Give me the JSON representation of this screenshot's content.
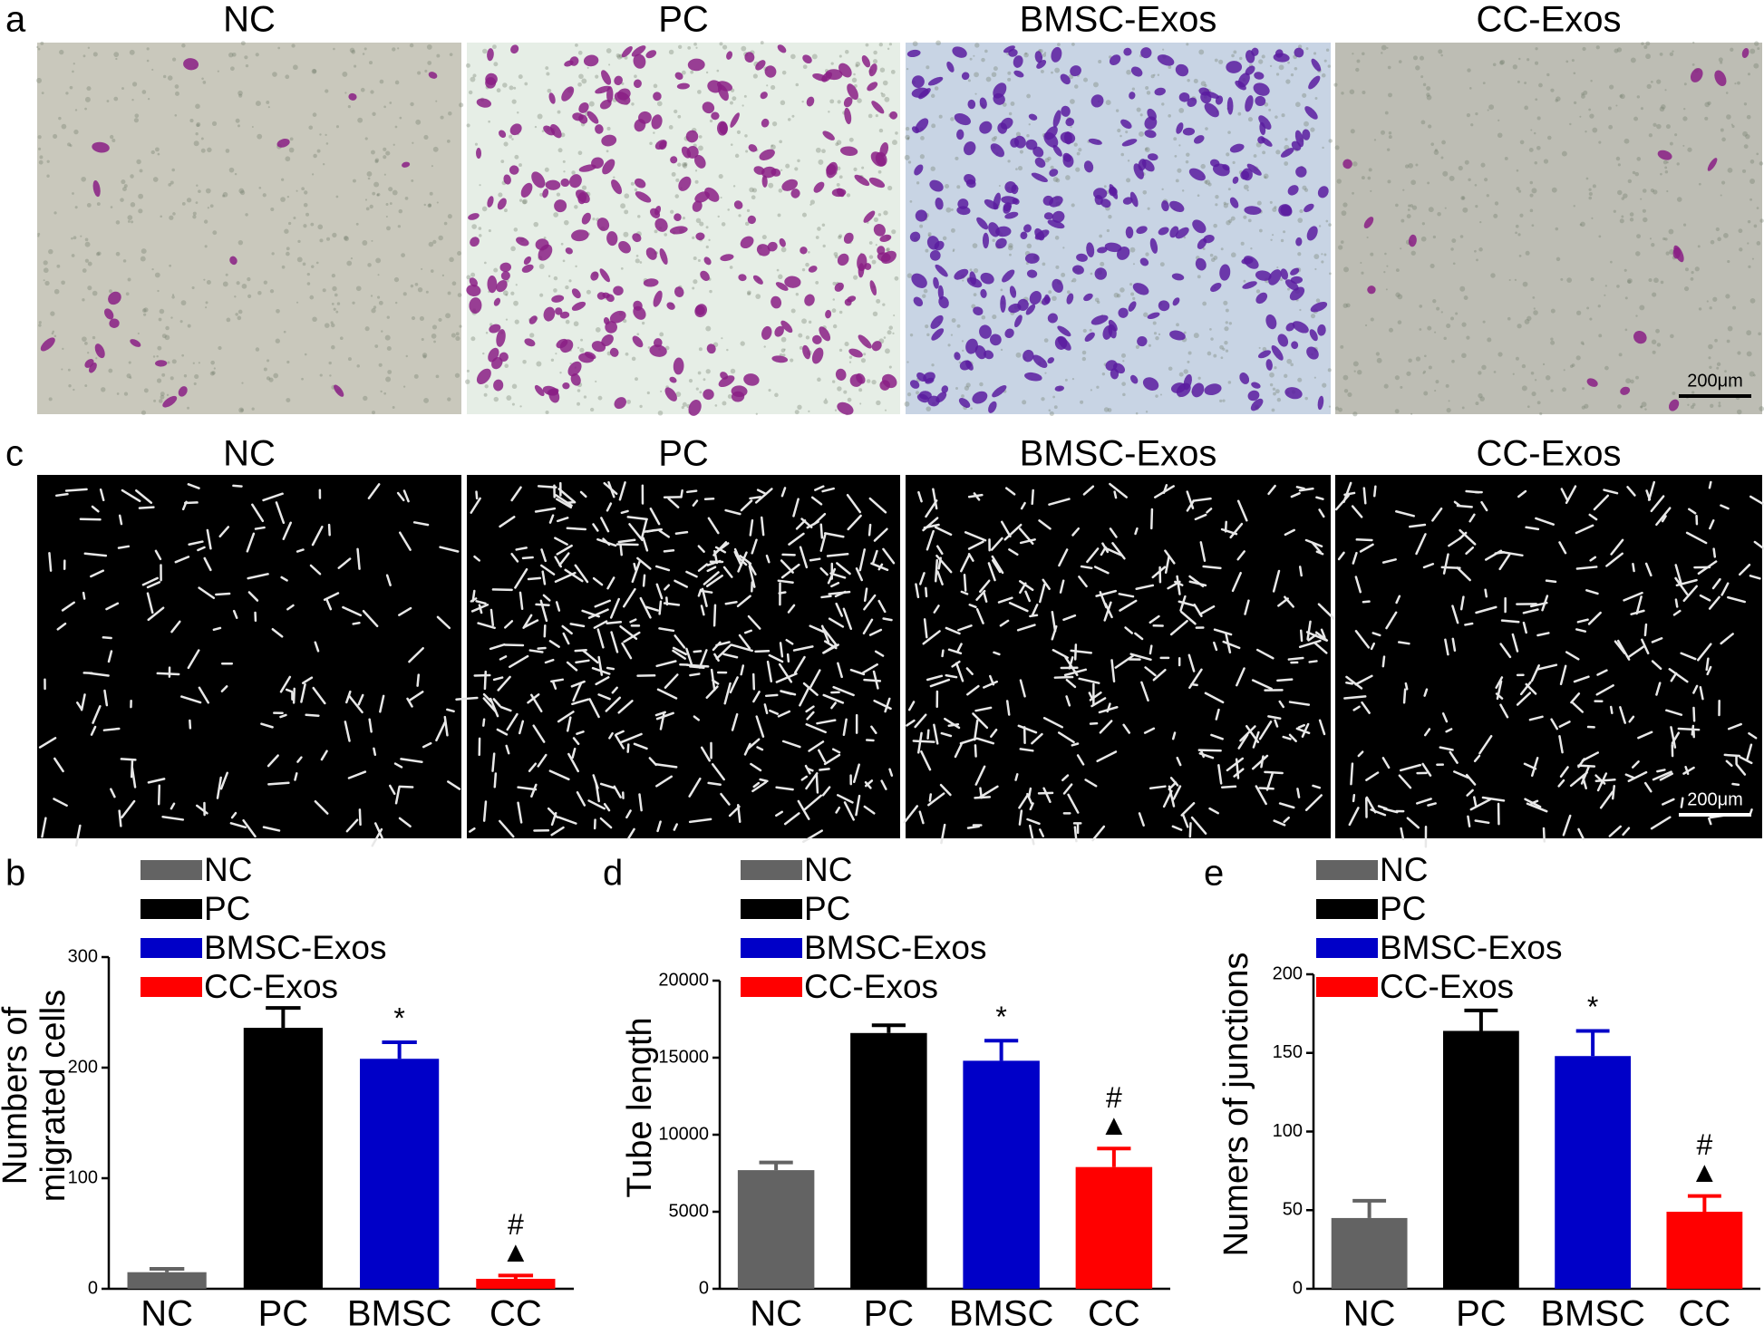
{
  "panels": {
    "a": {
      "label": "a",
      "titles": [
        "NC",
        "PC",
        "BMSC-Exos",
        "CC-Exos"
      ],
      "scale_bar": "200μm"
    },
    "c": {
      "label": "c",
      "titles": [
        "NC",
        "PC",
        "BMSC-Exos",
        "CC-Exos"
      ],
      "scale_bar": "200μm"
    }
  },
  "chart_data": [
    {
      "type": "bar",
      "panel_label": "b",
      "ylabel": [
        "Numbers of",
        "migrated cells"
      ],
      "categories": [
        "NC",
        "PC",
        "BMSC",
        "CC"
      ],
      "values": [
        15,
        236,
        208,
        9
      ],
      "errors": [
        3,
        18,
        15,
        3
      ],
      "colors": [
        "#636363",
        "#000000",
        "#0000c8",
        "#ff0000"
      ],
      "legend": [
        "NC",
        "PC",
        "BMSC-Exos",
        "CC-Exos"
      ],
      "annotations": [
        {
          "category": "BMSC",
          "text": "*"
        },
        {
          "category": "CC",
          "text": "▲"
        },
        {
          "category": "CC",
          "text": "#"
        }
      ],
      "ylim": [
        0,
        300
      ],
      "yticks": [
        0,
        100,
        200,
        300
      ]
    },
    {
      "type": "bar",
      "panel_label": "d",
      "ylabel": [
        "Tube length"
      ],
      "categories": [
        "NC",
        "PC",
        "BMSC",
        "CC"
      ],
      "values": [
        7700,
        16600,
        14800,
        7900
      ],
      "errors": [
        500,
        500,
        1300,
        1200
      ],
      "colors": [
        "#636363",
        "#000000",
        "#0000c8",
        "#ff0000"
      ],
      "legend": [
        "NC",
        "PC",
        "BMSC-Exos",
        "CC-Exos"
      ],
      "annotations": [
        {
          "category": "BMSC",
          "text": "*"
        },
        {
          "category": "CC",
          "text": "▲"
        },
        {
          "category": "CC",
          "text": "#"
        }
      ],
      "ylim": [
        0,
        20000
      ],
      "yticks": [
        0,
        5000,
        10000,
        15000,
        20000
      ]
    },
    {
      "type": "bar",
      "panel_label": "e",
      "ylabel": [
        "Numers of junctions"
      ],
      "categories": [
        "NC",
        "PC",
        "BMSC",
        "CC"
      ],
      "values": [
        45,
        164,
        148,
        49
      ],
      "errors": [
        11,
        13,
        16,
        10
      ],
      "colors": [
        "#636363",
        "#000000",
        "#0000c8",
        "#ff0000"
      ],
      "legend": [
        "NC",
        "PC",
        "BMSC-Exos",
        "CC-Exos"
      ],
      "annotations": [
        {
          "category": "BMSC",
          "text": "*"
        },
        {
          "category": "CC",
          "text": "▲"
        },
        {
          "category": "CC",
          "text": "#"
        }
      ],
      "ylim": [
        0,
        200
      ],
      "yticks": [
        0,
        50,
        100,
        150,
        200
      ]
    }
  ]
}
